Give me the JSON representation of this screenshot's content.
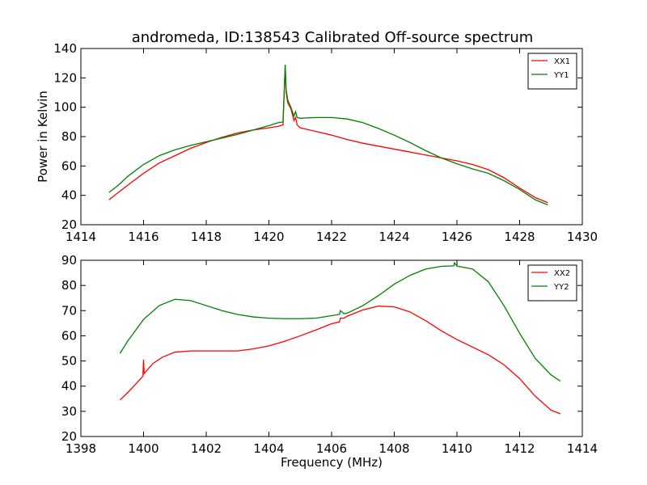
{
  "figure": {
    "title": "andromeda, ID:138543 Calibrated Off-source spectrum"
  },
  "chart_data": [
    {
      "type": "line",
      "title": "andromeda, ID:138543 Calibrated Off-source spectrum",
      "xlabel": "",
      "ylabel": "Power in Kelvin",
      "xlim": [
        1414,
        1430
      ],
      "ylim": [
        20,
        140
      ],
      "xticks": [
        1414,
        1416,
        1418,
        1420,
        1422,
        1424,
        1426,
        1428,
        1430
      ],
      "yticks": [
        20,
        40,
        60,
        80,
        100,
        120,
        140
      ],
      "grid": false,
      "legend_position": "top-right",
      "series": [
        {
          "name": "XX1",
          "color": "#ff0000",
          "x": [
            1414.9,
            1415.2,
            1415.5,
            1416.0,
            1416.5,
            1417.0,
            1417.5,
            1418.0,
            1418.5,
            1419.0,
            1419.5,
            1420.0,
            1420.3,
            1420.45,
            1420.52,
            1420.55,
            1420.6,
            1420.7,
            1420.8,
            1420.85,
            1420.9,
            1421.0,
            1421.5,
            1422.0,
            1422.5,
            1423.0,
            1423.5,
            1424.0,
            1424.5,
            1425.0,
            1425.5,
            1426.0,
            1426.5,
            1427.0,
            1427.5,
            1428.0,
            1428.5,
            1428.9
          ],
          "y": [
            37,
            42,
            47,
            55,
            62,
            67,
            72,
            76,
            79.5,
            82.5,
            84.5,
            86,
            87,
            88,
            128,
            110,
            103,
            99,
            91,
            93,
            88,
            86,
            83.5,
            81,
            78,
            75.5,
            73.5,
            71.5,
            69.5,
            67.5,
            65.5,
            63.5,
            61,
            57.5,
            52,
            45,
            38.5,
            35
          ]
        },
        {
          "name": "YY1",
          "color": "#008000",
          "x": [
            1414.9,
            1415.2,
            1415.5,
            1416.0,
            1416.5,
            1417.0,
            1417.5,
            1418.0,
            1418.5,
            1419.0,
            1419.5,
            1420.0,
            1420.3,
            1420.45,
            1420.52,
            1420.55,
            1420.6,
            1420.7,
            1420.8,
            1420.85,
            1420.9,
            1421.0,
            1421.5,
            1422.0,
            1422.5,
            1423.0,
            1423.5,
            1424.0,
            1424.5,
            1425.0,
            1425.5,
            1426.0,
            1426.5,
            1427.0,
            1427.5,
            1428.0,
            1428.5,
            1428.9
          ],
          "y": [
            42,
            47,
            53,
            61,
            67,
            71,
            74,
            76.5,
            79,
            81.5,
            84.5,
            87.5,
            89.5,
            90,
            129,
            112,
            105,
            100,
            94,
            97,
            93,
            92.5,
            93,
            93,
            92,
            89.5,
            85.5,
            81,
            76,
            70.5,
            65.5,
            61.5,
            58,
            55,
            50,
            44,
            37,
            33.5
          ]
        }
      ]
    },
    {
      "type": "line",
      "title": "",
      "xlabel": "Frequency (MHz)",
      "ylabel": "",
      "xlim": [
        1398,
        1414
      ],
      "ylim": [
        20,
        90
      ],
      "xticks": [
        1398,
        1400,
        1402,
        1404,
        1406,
        1408,
        1410,
        1412,
        1414
      ],
      "yticks": [
        20,
        30,
        40,
        50,
        60,
        70,
        80,
        90
      ],
      "grid": false,
      "legend_position": "top-right",
      "series": [
        {
          "name": "XX2",
          "color": "#ff0000",
          "x": [
            1399.25,
            1399.5,
            1399.8,
            1399.98,
            1400.0,
            1400.02,
            1400.3,
            1400.6,
            1401.0,
            1401.5,
            1402.0,
            1402.5,
            1403.0,
            1403.5,
            1404.0,
            1404.5,
            1405.0,
            1405.5,
            1406.0,
            1406.25,
            1406.28,
            1406.4,
            1406.5,
            1407.0,
            1407.5,
            1408.0,
            1408.5,
            1409.0,
            1409.5,
            1410.0,
            1410.5,
            1411.0,
            1411.5,
            1412.0,
            1412.5,
            1413.0,
            1413.3
          ],
          "y": [
            34.5,
            37.5,
            41.5,
            44,
            50.5,
            45,
            49,
            51.5,
            53.5,
            54,
            54,
            54,
            54,
            54.8,
            56,
            57.8,
            60,
            62.3,
            64.8,
            65.5,
            67,
            67,
            67.8,
            70.3,
            71.8,
            71.5,
            69.5,
            66,
            62,
            58.5,
            55.5,
            52.5,
            48.5,
            43,
            36,
            30.5,
            29
          ]
        },
        {
          "name": "YY2",
          "color": "#008000",
          "x": [
            1399.25,
            1399.5,
            1400.0,
            1400.5,
            1401.0,
            1401.5,
            1402.0,
            1402.5,
            1403.0,
            1403.5,
            1404.0,
            1404.5,
            1405.0,
            1405.5,
            1406.0,
            1406.25,
            1406.28,
            1406.4,
            1406.5,
            1407.0,
            1407.5,
            1408.0,
            1408.5,
            1409.0,
            1409.5,
            1409.9,
            1409.92,
            1410.0,
            1410.5,
            1411.0,
            1411.5,
            1412.0,
            1412.5,
            1413.0,
            1413.3
          ],
          "y": [
            53,
            58,
            66.5,
            72,
            74.5,
            74,
            72,
            70,
            68.5,
            67.5,
            67,
            66.8,
            66.8,
            67,
            68,
            68.5,
            70,
            68.8,
            69,
            72,
            76,
            80.5,
            84,
            86.5,
            87.6,
            87.8,
            89,
            87.7,
            86.5,
            81.5,
            72,
            61,
            51,
            44.5,
            42
          ]
        }
      ]
    }
  ]
}
